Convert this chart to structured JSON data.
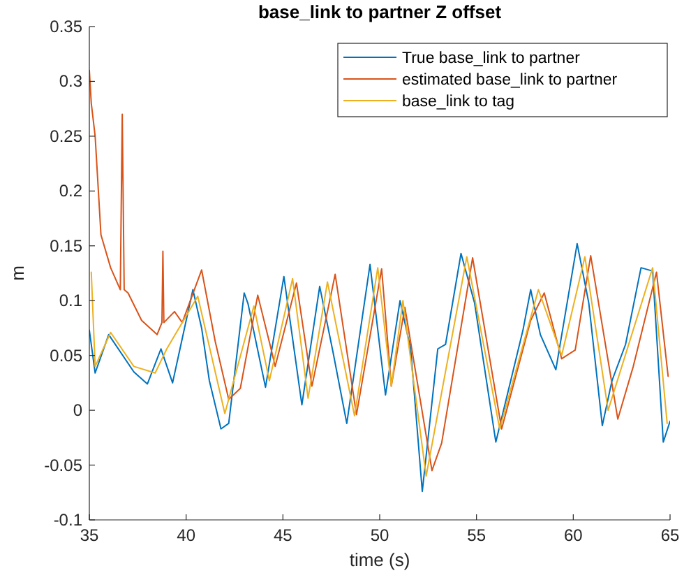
{
  "chart_data": {
    "type": "line",
    "title": "base_link to partner Z offset",
    "xlabel": "time (s)",
    "ylabel": "m",
    "xlim": [
      35,
      65
    ],
    "xticks": [
      35,
      40,
      45,
      50,
      55,
      60,
      65
    ],
    "ylim": [
      -0.1,
      0.35
    ],
    "yticks": [
      -0.1,
      -0.05,
      0,
      0.05,
      0.1,
      0.15,
      0.2,
      0.25,
      0.3,
      0.35
    ],
    "legend": "top right",
    "grid": false,
    "line_style": "solid",
    "marker": "none",
    "series": [
      {
        "name": "True base_link to partner",
        "color": "#0072bd",
        "x": [
          35,
          35.3,
          36,
          37.3,
          38,
          38.7,
          39.3,
          40.35,
          40.8,
          41.2,
          41.8,
          42.2,
          43,
          43.2,
          44.1,
          45.05,
          45.98,
          46.9,
          47.6,
          48.3,
          49.5,
          50.3,
          51.05,
          51.6,
          52.2,
          53,
          53.4,
          54.2,
          54.9,
          56,
          57.4,
          57.8,
          58.3,
          59.1,
          60.2,
          60.8,
          61.5,
          62,
          62.7,
          63.5,
          64.1,
          64.65,
          65
        ],
        "values": [
          0.073,
          0.034,
          0.069,
          0.035,
          0.024,
          0.056,
          0.025,
          0.11,
          0.075,
          0.027,
          -0.017,
          -0.012,
          0.107,
          0.097,
          0.021,
          0.122,
          0.005,
          0.113,
          0.052,
          -0.012,
          0.133,
          0.014,
          0.1,
          0.056,
          -0.074,
          0.056,
          0.06,
          0.143,
          0.098,
          -0.029,
          0.073,
          0.11,
          0.069,
          0.037,
          0.152,
          0.098,
          -0.014,
          0.027,
          0.06,
          0.13,
          0.127,
          -0.029,
          -0.01
        ]
      },
      {
        "name": "estimated base_link to partner",
        "color": "#d95319",
        "x": [
          35,
          35.1,
          35.3,
          35.6,
          36.1,
          36.6,
          36.7,
          36.8,
          37,
          37.7,
          38.5,
          38.75,
          38.8,
          38.85,
          39.4,
          39.8,
          40.8,
          41.5,
          42.2,
          42.8,
          43.7,
          44.4,
          44.6,
          45.7,
          46.5,
          47.7,
          48.8,
          50.1,
          50.6,
          51.3,
          52.7,
          53.2,
          54.8,
          56.3,
          57.8,
          58.5,
          59.4,
          60.1,
          60.9,
          62.3,
          63.1,
          64.3,
          64.9
        ],
        "values": [
          0.31,
          0.28,
          0.25,
          0.16,
          0.13,
          0.11,
          0.27,
          0.11,
          0.107,
          0.082,
          0.069,
          0.08,
          0.145,
          0.08,
          0.09,
          0.08,
          0.128,
          0.063,
          0.01,
          0.02,
          0.105,
          0.055,
          0.04,
          0.116,
          0.022,
          0.124,
          -0.004,
          0.129,
          0.022,
          0.094,
          -0.055,
          -0.03,
          0.139,
          -0.017,
          0.082,
          0.107,
          0.047,
          0.055,
          0.141,
          -0.008,
          0.04,
          0.126,
          0.031
        ]
      },
      {
        "name": "base_link to tag",
        "color": "#edb120",
        "x": [
          35.1,
          35.3,
          36.1,
          37.3,
          38.4,
          39,
          40.6,
          42,
          43.5,
          44.3,
          45.5,
          46.3,
          47.3,
          48.7,
          49.9,
          50.6,
          51.2,
          52.4,
          54.5,
          56.2,
          58.2,
          59.4,
          60.6,
          61.8,
          64.1,
          64.85
        ],
        "values": [
          0.126,
          0.04,
          0.071,
          0.04,
          0.034,
          0.056,
          0.104,
          -0.003,
          0.095,
          0.027,
          0.12,
          0.011,
          0.117,
          -0.005,
          0.13,
          0.022,
          0.1,
          -0.06,
          0.14,
          -0.017,
          0.11,
          0.05,
          0.14,
          0,
          0.13,
          -0.012
        ]
      }
    ]
  }
}
